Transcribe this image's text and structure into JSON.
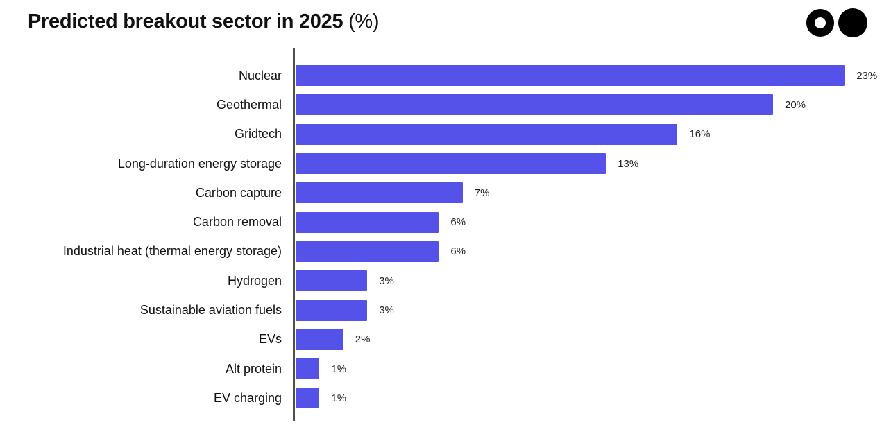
{
  "title": {
    "main": "Predicted breakout sector in 2025",
    "suffix": "(%)"
  },
  "logo": {
    "icons": [
      "ring-circle",
      "solid-circle"
    ],
    "color": "#000000"
  },
  "colors": {
    "bar": "#5452e8",
    "axis": "#4f4f4f",
    "title_text": "#111111",
    "label_text": "#111111",
    "value_text": "#1f1f1f",
    "background": "#ffffff"
  },
  "chart_data": {
    "type": "bar",
    "orientation": "horizontal",
    "title": "Predicted breakout sector in 2025 (%)",
    "categories": [
      "Nuclear",
      "Geothermal",
      "Gridtech",
      "Long-duration energy storage",
      "Carbon capture",
      "Carbon removal",
      "Industrial heat (thermal energy storage)",
      "Hydrogen",
      "Sustainable aviation fuels",
      "EVs",
      "Alt protein",
      "EV charging"
    ],
    "values": [
      23,
      20,
      16,
      13,
      7,
      6,
      6,
      3,
      3,
      2,
      1,
      1
    ],
    "value_suffix": "%",
    "value_labels": [
      "23%",
      "20%",
      "16%",
      "13%",
      "7%",
      "6%",
      "6%",
      "3%",
      "3%",
      "2%",
      "1%",
      "1%"
    ],
    "xlabel": "",
    "ylabel": "",
    "xlim": [
      0,
      25
    ],
    "grid": false,
    "legend": false,
    "value_label_position": "outside-end",
    "sorted": "descending"
  }
}
